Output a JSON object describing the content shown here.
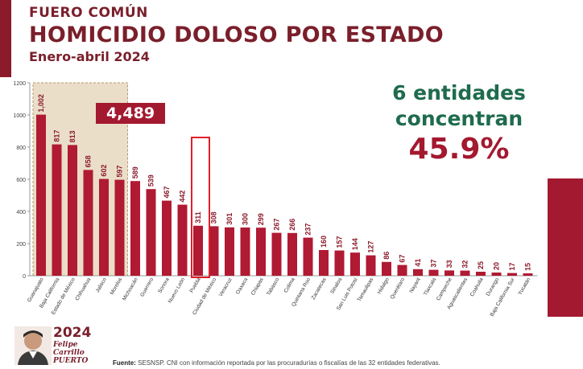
{
  "header": {
    "subtitle": "FUERO COMÚN",
    "title": "HOMICIDIO DOLOSO POR ESTADO",
    "period": "Enero-abril 2024"
  },
  "callout": {
    "line1": "6 entidades",
    "line2": "concentran",
    "percent": "45.9%"
  },
  "summary_badge": "4,489",
  "logo": {
    "year": "2024",
    "name_line1": "Felipe Carrillo",
    "name_line2": "PUERTO"
  },
  "source": {
    "label": "Fuente:",
    "text": "SESNSP. CNI con información reportada por las procuradurías o fiscalías de las 32 entidades federativas."
  },
  "colors": {
    "bar": "#b01a32",
    "accent_green": "#1f6b4e",
    "title": "#7a1f2b",
    "highlight_box": "#e0202a",
    "top6_panel": "#d8c29c"
  },
  "chart_data": {
    "type": "bar",
    "title": "HOMICIDIO DOLOSO POR ESTADO",
    "xlabel": "",
    "ylabel": "",
    "ylim": [
      0,
      1200
    ],
    "yticks": [
      0,
      200,
      400,
      600,
      800,
      1000,
      1200
    ],
    "grid": false,
    "highlight_group": [
      "Guanajuato",
      "Baja California",
      "Estado de México",
      "Chihuahua",
      "Jalisco",
      "Morelos"
    ],
    "highlight_box": "Puebla",
    "categories": [
      "Guanajuato",
      "Baja California",
      "Estado de México",
      "Chihuahua",
      "Jalisco",
      "Morelos",
      "Michoacán",
      "Guerrero",
      "Sonora",
      "Nuevo León",
      "Puebla",
      "Ciudad de México",
      "Veracruz",
      "Oaxaca",
      "Chiapas",
      "Tabasco",
      "Colima",
      "Quintana Roo",
      "Zacatecas",
      "Sinaloa",
      "San Luis Potosí",
      "Tamaulipas",
      "Hidalgo",
      "Querétaro",
      "Nayarit",
      "Tlaxcala",
      "Campeche",
      "Aguascalientes",
      "Coahuila",
      "Durango",
      "Baja California Sur",
      "Yucatán"
    ],
    "values": [
      1002,
      817,
      813,
      658,
      602,
      597,
      589,
      539,
      467,
      442,
      311,
      308,
      301,
      300,
      299,
      267,
      266,
      237,
      160,
      157,
      144,
      127,
      86,
      67,
      41,
      37,
      33,
      32,
      25,
      20,
      17,
      15
    ]
  }
}
